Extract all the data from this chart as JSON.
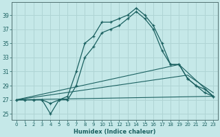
{
  "xlabel": "Humidex (Indice chaleur)",
  "background_color": "#c5e8e8",
  "grid_color": "#afd4d4",
  "line_color": "#1a6060",
  "xlim": [
    -0.5,
    23.5
  ],
  "ylim": [
    24.2,
    40.8
  ],
  "yticks": [
    25,
    27,
    29,
    31,
    33,
    35,
    37,
    39
  ],
  "xticks": [
    0,
    1,
    2,
    3,
    4,
    5,
    6,
    7,
    8,
    9,
    10,
    11,
    12,
    13,
    14,
    15,
    16,
    17,
    18,
    19,
    20,
    21,
    22,
    23
  ],
  "series1": [
    [
      0,
      27.0
    ],
    [
      1,
      27.0
    ],
    [
      2,
      27.0
    ],
    [
      3,
      27.0
    ],
    [
      4,
      25.0
    ],
    [
      5,
      27.0
    ],
    [
      6,
      27.5
    ],
    [
      7,
      31.0
    ],
    [
      8,
      35.0
    ],
    [
      9,
      36.0
    ],
    [
      10,
      38.0
    ],
    [
      11,
      38.0
    ],
    [
      12,
      38.5
    ],
    [
      13,
      39.0
    ],
    [
      14,
      40.0
    ],
    [
      15,
      39.0
    ],
    [
      16,
      37.5
    ],
    [
      17,
      35.0
    ],
    [
      18,
      32.0
    ],
    [
      19,
      32.0
    ],
    [
      20,
      30.0
    ],
    [
      21,
      29.0
    ],
    [
      22,
      28.0
    ],
    [
      23,
      27.5
    ]
  ],
  "series2": [
    [
      0,
      27.0
    ],
    [
      1,
      27.0
    ],
    [
      2,
      27.0
    ],
    [
      3,
      27.0
    ],
    [
      4,
      26.5
    ],
    [
      5,
      27.0
    ],
    [
      6,
      27.0
    ],
    [
      7,
      29.0
    ],
    [
      8,
      33.0
    ],
    [
      9,
      34.5
    ],
    [
      10,
      36.5
    ],
    [
      11,
      37.0
    ],
    [
      12,
      37.5
    ],
    [
      13,
      38.5
    ],
    [
      14,
      39.5
    ],
    [
      15,
      38.5
    ],
    [
      16,
      37.0
    ],
    [
      17,
      34.0
    ],
    [
      18,
      32.0
    ],
    [
      19,
      32.0
    ],
    [
      20,
      30.0
    ],
    [
      21,
      29.0
    ],
    [
      22,
      28.5
    ],
    [
      23,
      27.5
    ]
  ],
  "line3": [
    [
      0,
      27.0
    ],
    [
      19,
      32.0
    ],
    [
      23,
      27.5
    ]
  ],
  "line4": [
    [
      0,
      27.0
    ],
    [
      20,
      30.5
    ],
    [
      23,
      28.0
    ]
  ],
  "line5": [
    [
      0,
      27.0
    ],
    [
      23,
      27.5
    ]
  ]
}
